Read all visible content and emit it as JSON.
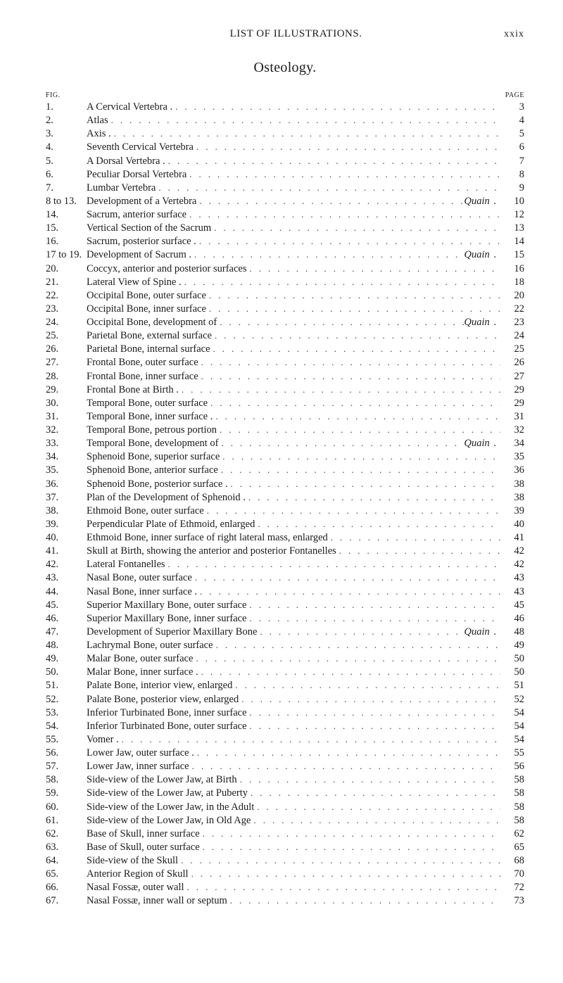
{
  "header": {
    "running_title": "LIST OF ILLUSTRATIONS.",
    "folio": "xxix"
  },
  "section": {
    "title": "Osteology."
  },
  "column_heads": {
    "fig": "FIG.",
    "page": "PAGE"
  },
  "entries": [
    {
      "num": "1.",
      "title": "A Cervical Vertebra .",
      "author": "",
      "page": "3"
    },
    {
      "num": "2.",
      "title": "Atlas",
      "author": "",
      "page": "4"
    },
    {
      "num": "3.",
      "title": "Axis .",
      "author": "",
      "page": "5"
    },
    {
      "num": "4.",
      "title": "Seventh Cervical Vertebra",
      "author": "",
      "page": "6"
    },
    {
      "num": "5.",
      "title": "A Dorsal Vertebra .",
      "author": "",
      "page": "7"
    },
    {
      "num": "6.",
      "title": "Peculiar Dorsal Vertebra",
      "author": "",
      "page": "8"
    },
    {
      "num": "7.",
      "title": "Lumbar Vertebra",
      "author": "",
      "page": "9"
    },
    {
      "num": "8 to 13.",
      "title": "Development of a Vertebra",
      "author": "Quain",
      "page": "10"
    },
    {
      "num": "14.",
      "title": "Sacrum, anterior surface",
      "author": "",
      "page": "12"
    },
    {
      "num": "15.",
      "title": "Vertical Section of the Sacrum",
      "author": "",
      "page": "13"
    },
    {
      "num": "16.",
      "title": "Sacrum, posterior surface .",
      "author": "",
      "page": "14"
    },
    {
      "num": "17 to 19.",
      "title": "Development of Sacrum .",
      "author": "Quain",
      "page": "15"
    },
    {
      "num": "20.",
      "title": "Coccyx, anterior and posterior surfaces",
      "author": "",
      "page": "16"
    },
    {
      "num": "21.",
      "title": "Lateral View of Spine .",
      "author": "",
      "page": "18"
    },
    {
      "num": "22.",
      "title": "Occipital Bone, outer surface",
      "author": "",
      "page": "20"
    },
    {
      "num": "23.",
      "title": "Occipital Bone, inner surface",
      "author": "",
      "page": "22"
    },
    {
      "num": "24.",
      "title": "Occipital Bone, development of",
      "author": "Quain",
      "page": "23"
    },
    {
      "num": "25.",
      "title": "Parietal Bone, external surface",
      "author": "",
      "page": "24"
    },
    {
      "num": "26.",
      "title": "Parietal Bone, internal surface",
      "author": "",
      "page": "25"
    },
    {
      "num": "27.",
      "title": "Frontal Bone, outer surface",
      "author": "",
      "page": "26"
    },
    {
      "num": "28.",
      "title": "Frontal Bone, inner surface",
      "author": "",
      "page": "27"
    },
    {
      "num": "29.",
      "title": "Frontal Bone at Birth .",
      "author": "",
      "page": "29"
    },
    {
      "num": "30.",
      "title": "Temporal Bone, outer surface",
      "author": "",
      "page": "29"
    },
    {
      "num": "31.",
      "title": "Temporal Bone, inner surface .",
      "author": "",
      "page": "31"
    },
    {
      "num": "32.",
      "title": "Temporal Bone, petrous portion",
      "author": "",
      "page": "32"
    },
    {
      "num": "33.",
      "title": "Temporal Bone, development of",
      "author": "Quain",
      "page": "34"
    },
    {
      "num": "34.",
      "title": "Sphenoid Bone, superior surface",
      "author": "",
      "page": "35"
    },
    {
      "num": "35.",
      "title": "Sphenoid Bone, anterior surface",
      "author": "",
      "page": "36"
    },
    {
      "num": "36.",
      "title": "Sphenoid Bone, posterior surface .",
      "author": "",
      "page": "38"
    },
    {
      "num": "37.",
      "title": "Plan of the Development of Sphenoid .",
      "author": "",
      "page": "38"
    },
    {
      "num": "38.",
      "title": "Ethmoid Bone, outer surface",
      "author": "",
      "page": "39"
    },
    {
      "num": "39.",
      "title": "Perpendicular Plate of Ethmoid, enlarged",
      "author": "",
      "page": "40"
    },
    {
      "num": "40.",
      "title": "Ethmoid Bone, inner surface of right lateral mass, enlarged",
      "author": "",
      "page": "41"
    },
    {
      "num": "41.",
      "title": "Skull at Birth, showing the anterior and posterior Fontanelles",
      "author": "",
      "page": "42"
    },
    {
      "num": "42.",
      "title": "Lateral Fontanelles",
      "author": "",
      "page": "42"
    },
    {
      "num": "43.",
      "title": "Nasal Bone, outer surface",
      "author": "",
      "page": "43"
    },
    {
      "num": "44.",
      "title": "Nasal Bone, inner surface .",
      "author": "",
      "page": "43"
    },
    {
      "num": "45.",
      "title": "Superior Maxillary Bone, outer surface",
      "author": "",
      "page": "45"
    },
    {
      "num": "46.",
      "title": "Superior Maxillary Bone, inner surface",
      "author": "",
      "page": "46"
    },
    {
      "num": "47.",
      "title": "Development of Superior Maxillary Bone",
      "author": "Quain",
      "page": "48"
    },
    {
      "num": "48.",
      "title": "Lachrymal Bone, outer surface",
      "author": "",
      "page": "49"
    },
    {
      "num": "49.",
      "title": "Malar Bone, outer surface",
      "author": "",
      "page": "50"
    },
    {
      "num": "50.",
      "title": "Malar Bone, inner surface .",
      "author": "",
      "page": "50"
    },
    {
      "num": "51.",
      "title": "Palate Bone, interior view, enlarged",
      "author": "",
      "page": "51"
    },
    {
      "num": "52.",
      "title": "Palate Bone, posterior view, enlarged",
      "author": "",
      "page": "52"
    },
    {
      "num": "53.",
      "title": "Inferior Turbinated Bone, inner surface",
      "author": "",
      "page": "54"
    },
    {
      "num": "54.",
      "title": "Inferior Turbinated Bone, outer surface",
      "author": "",
      "page": "54"
    },
    {
      "num": "55.",
      "title": "Vomer .",
      "author": "",
      "page": "54"
    },
    {
      "num": "56.",
      "title": "Lower Jaw, outer surface .",
      "author": "",
      "page": "55"
    },
    {
      "num": "57.",
      "title": "Lower Jaw, inner surface",
      "author": "",
      "page": "56"
    },
    {
      "num": "58.",
      "title": "Side-view of the Lower Jaw, at Birth",
      "author": "",
      "page": "58"
    },
    {
      "num": "59.",
      "title": "Side-view of the Lower Jaw, at Puberty",
      "author": "",
      "page": "58"
    },
    {
      "num": "60.",
      "title": "Side-view of the Lower Jaw, in the Adult",
      "author": "",
      "page": "58"
    },
    {
      "num": "61.",
      "title": "Side-view of the Lower Jaw, in Old Age",
      "author": "",
      "page": "58"
    },
    {
      "num": "62.",
      "title": "Base of Skull, inner surface",
      "author": "",
      "page": "62"
    },
    {
      "num": "63.",
      "title": "Base of Skull, outer surface",
      "author": "",
      "page": "65"
    },
    {
      "num": "64.",
      "title": "Side-view of the Skull",
      "author": "",
      "page": "68"
    },
    {
      "num": "65.",
      "title": "Anterior Region of Skull",
      "author": "",
      "page": "70"
    },
    {
      "num": "66.",
      "title": "Nasal Fossæ, outer wall",
      "author": "",
      "page": "72"
    },
    {
      "num": "67.",
      "title": "Nasal Fossæ, inner wall or septum",
      "author": "",
      "page": "73"
    }
  ]
}
